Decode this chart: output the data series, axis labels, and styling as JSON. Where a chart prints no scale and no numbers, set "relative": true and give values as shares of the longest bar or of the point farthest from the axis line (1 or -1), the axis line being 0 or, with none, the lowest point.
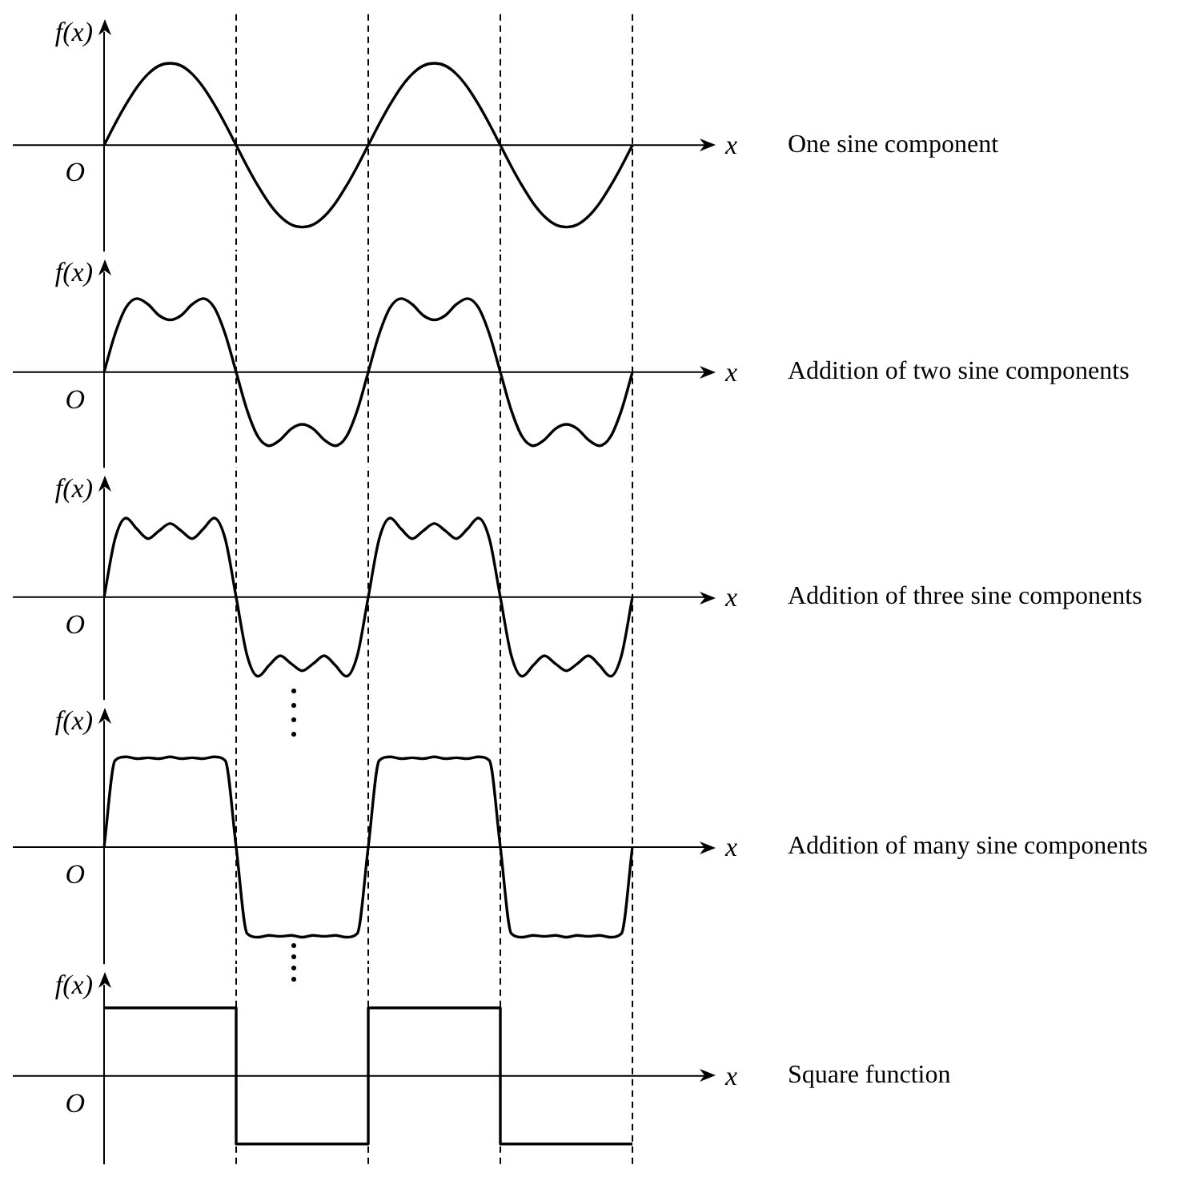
{
  "chart_data": [
    {
      "type": "line",
      "grid": "x",
      "xlabel": "x",
      "ylabel": "f(x)",
      "annotations": [
        "O",
        "One sine component"
      ],
      "relative": true,
      "categories": [
        null,
        null,
        null,
        null,
        null,
        null,
        null,
        null,
        null,
        null,
        null,
        null,
        null,
        null,
        null,
        null,
        null,
        null,
        null,
        null,
        null,
        null,
        null,
        null,
        null,
        null,
        null,
        null,
        null,
        null,
        null,
        null,
        null,
        null,
        null,
        null,
        null,
        null,
        null,
        null,
        null,
        null,
        null,
        null,
        null,
        null,
        null,
        null,
        null
      ],
      "series": [
        {
          "color": "#000000",
          "values": [
            0,
            0.26,
            0.5,
            0.71,
            0.87,
            0.97,
            1,
            0.97,
            0.87,
            0.71,
            0.5,
            0.26,
            0,
            -0.26,
            -0.5,
            -0.71,
            -0.87,
            -0.97,
            -1,
            -0.97,
            -0.87,
            -0.71,
            -0.5,
            -0.26,
            0,
            0.26,
            0.5,
            0.71,
            0.87,
            0.97,
            1,
            0.97,
            0.87,
            0.71,
            0.5,
            0.26,
            0,
            -0.26,
            -0.5,
            -0.71,
            -0.87,
            -0.97,
            -1,
            -0.97,
            -0.87,
            -0.71,
            -0.5,
            -0.26,
            0
          ]
        }
      ]
    },
    {
      "type": "line",
      "grid": "x",
      "xlabel": "x",
      "ylabel": "f(x)",
      "annotations": [
        "O",
        "Addition of two sine components"
      ],
      "relative": true,
      "categories": [
        null,
        null,
        null,
        null,
        null,
        null,
        null,
        null,
        null,
        null,
        null,
        null,
        null,
        null,
        null,
        null,
        null,
        null,
        null,
        null,
        null,
        null,
        null,
        null,
        null,
        null,
        null,
        null,
        null,
        null,
        null,
        null,
        null,
        null,
        null,
        null,
        null,
        null,
        null,
        null,
        null,
        null,
        null,
        null,
        null,
        null,
        null,
        null,
        null
      ],
      "series": [
        {
          "color": "#000000",
          "values": [
            0,
            0.52,
            0.88,
            1,
            0.92,
            0.77,
            0.71,
            0.77,
            0.92,
            1,
            0.88,
            0.52,
            0,
            -0.52,
            -0.88,
            -1,
            -0.92,
            -0.77,
            -0.71,
            -0.77,
            -0.92,
            -1,
            -0.88,
            -0.52,
            0,
            0.52,
            0.88,
            1,
            0.92,
            0.77,
            0.71,
            0.77,
            0.92,
            1,
            0.88,
            0.52,
            0,
            -0.52,
            -0.88,
            -1,
            -0.92,
            -0.77,
            -0.71,
            -0.77,
            -0.92,
            -1,
            -0.88,
            -0.52,
            0
          ]
        }
      ]
    },
    {
      "type": "line",
      "grid": "x",
      "xlabel": "x",
      "ylabel": "f(x)",
      "annotations": [
        "O",
        "Addition of three sine components"
      ],
      "relative": true,
      "categories": [
        null,
        null,
        null,
        null,
        null,
        null,
        null,
        null,
        null,
        null,
        null,
        null,
        null,
        null,
        null,
        null,
        null,
        null,
        null,
        null,
        null,
        null,
        null,
        null,
        null,
        null,
        null,
        null,
        null,
        null,
        null,
        null,
        null,
        null,
        null,
        null,
        null,
        null,
        null,
        null,
        null,
        null,
        null,
        null,
        null,
        null,
        null,
        null,
        null
      ],
      "series": [
        {
          "color": "#000000",
          "values": [
            0,
            0.74,
            1,
            0.86,
            0.74,
            0.84,
            0.93,
            0.84,
            0.74,
            0.86,
            1,
            0.74,
            0,
            -0.74,
            -1,
            -0.86,
            -0.74,
            -0.84,
            -0.93,
            -0.84,
            -0.74,
            -0.86,
            -1,
            -0.74,
            0,
            0.74,
            1,
            0.86,
            0.74,
            0.84,
            0.93,
            0.84,
            0.74,
            0.86,
            1,
            0.74,
            0,
            -0.74,
            -1,
            -0.86,
            -0.74,
            -0.84,
            -0.93,
            -0.84,
            -0.74,
            -0.86,
            -1,
            -0.74,
            0
          ]
        }
      ]
    },
    {
      "type": "line",
      "grid": "x",
      "xlabel": "x",
      "ylabel": "f(x)",
      "annotations": [
        "O",
        "Addition of many sine components"
      ],
      "relative": true,
      "categories": [
        null,
        null,
        null,
        null,
        null,
        null,
        null,
        null,
        null,
        null,
        null,
        null,
        null,
        null,
        null,
        null,
        null,
        null,
        null,
        null,
        null,
        null,
        null,
        null,
        null,
        null,
        null,
        null,
        null,
        null,
        null,
        null,
        null,
        null,
        null,
        null,
        null,
        null,
        null,
        null,
        null,
        null,
        null,
        null,
        null,
        null,
        null,
        null,
        null
      ],
      "series": [
        {
          "color": "#000000",
          "values": [
            0,
            0.96,
            1,
            0.98,
            0.99,
            0.98,
            1,
            0.98,
            0.99,
            0.98,
            1,
            0.96,
            0,
            -0.96,
            -1,
            -0.98,
            -0.99,
            -0.98,
            -1,
            -0.98,
            -0.99,
            -0.98,
            -1,
            -0.96,
            0,
            0.96,
            1,
            0.98,
            0.99,
            0.98,
            1,
            0.98,
            0.99,
            0.98,
            1,
            0.96,
            0,
            -0.96,
            -1,
            -0.98,
            -0.99,
            -0.98,
            -1,
            -0.98,
            -0.99,
            -0.98,
            -1,
            -0.96,
            0
          ]
        }
      ]
    },
    {
      "type": "step",
      "grid": "x",
      "xlabel": "x",
      "ylabel": "f(x)",
      "annotations": [
        "O",
        "Square function"
      ],
      "relative": true,
      "categories": [
        null,
        null,
        null,
        null,
        null
      ],
      "series": [
        {
          "color": "#000000",
          "values": [
            1,
            -1,
            1,
            -1,
            -1
          ]
        }
      ]
    }
  ]
}
